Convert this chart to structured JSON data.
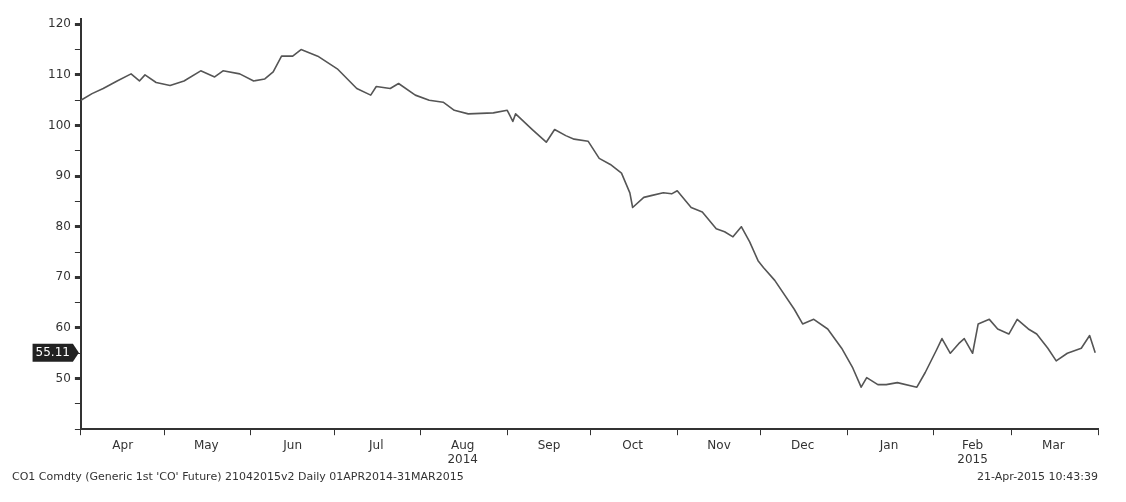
{
  "chart_data": {
    "type": "line",
    "x": [
      "2014-04-01",
      "2014-04-05",
      "2014-04-09",
      "2014-04-14",
      "2014-04-19",
      "2014-04-22",
      "2014-04-24",
      "2014-04-28",
      "2014-05-03",
      "2014-05-08",
      "2014-05-14",
      "2014-05-19",
      "2014-05-22",
      "2014-05-28",
      "2014-06-02",
      "2014-06-06",
      "2014-06-09",
      "2014-06-12",
      "2014-06-16",
      "2014-06-19",
      "2014-06-25",
      "2014-07-02",
      "2014-07-09",
      "2014-07-14",
      "2014-07-16",
      "2014-07-21",
      "2014-07-24",
      "2014-07-30",
      "2014-08-04",
      "2014-08-09",
      "2014-08-13",
      "2014-08-18",
      "2014-08-27",
      "2014-09-01",
      "2014-09-03",
      "2014-09-04",
      "2014-09-10",
      "2014-09-15",
      "2014-09-18",
      "2014-09-22",
      "2014-09-25",
      "2014-09-30",
      "2014-10-04",
      "2014-10-08",
      "2014-10-12",
      "2014-10-15",
      "2014-10-16",
      "2014-10-20",
      "2014-10-23",
      "2014-10-27",
      "2014-10-30",
      "2014-11-01",
      "2014-11-06",
      "2014-11-10",
      "2014-11-15",
      "2014-11-18",
      "2014-11-21",
      "2014-11-24",
      "2014-11-27",
      "2014-11-30",
      "2014-12-02",
      "2014-12-06",
      "2014-12-13",
      "2014-12-16",
      "2014-12-20",
      "2014-12-25",
      "2014-12-30",
      "2015-01-03",
      "2015-01-06",
      "2015-01-08",
      "2015-01-12",
      "2015-01-15",
      "2015-01-19",
      "2015-01-26",
      "2015-01-29",
      "2015-02-02",
      "2015-02-04",
      "2015-02-07",
      "2015-02-10",
      "2015-02-12",
      "2015-02-15",
      "2015-02-17",
      "2015-02-21",
      "2015-02-24",
      "2015-02-28",
      "2015-03-03",
      "2015-03-07",
      "2015-03-10",
      "2015-03-14",
      "2015-03-17",
      "2015-03-21",
      "2015-03-26",
      "2015-03-29",
      "2015-03-31"
    ],
    "series": [
      {
        "color": "#555555",
        "values": [
          105,
          106.3,
          107.3,
          108.8,
          110.2,
          108.8,
          110,
          108.5,
          107.9,
          108.8,
          110.8,
          109.6,
          110.8,
          110.2,
          108.8,
          109.2,
          110.6,
          113.7,
          113.7,
          115,
          113.7,
          111.2,
          107.3,
          106,
          107.7,
          107.3,
          108.3,
          106,
          105,
          104.6,
          103,
          102.3,
          102.5,
          103,
          100.8,
          102.3,
          99.2,
          96.7,
          99.2,
          98,
          97.3,
          96.9,
          93.5,
          92.3,
          90.6,
          86.7,
          83.8,
          85.8,
          86.2,
          86.7,
          86.5,
          87.1,
          83.8,
          82.9,
          79.6,
          79,
          78,
          80,
          77,
          73.3,
          71.9,
          69.4,
          63.7,
          60.8,
          61.7,
          59.8,
          56,
          52.1,
          48.3,
          50.2,
          48.8,
          48.8,
          49.2,
          48.3,
          51.2,
          55.6,
          57.9,
          55,
          56.9,
          57.9,
          55,
          60.8,
          61.7,
          59.8,
          58.8,
          61.7,
          59.8,
          58.8,
          56,
          53.5,
          55,
          56,
          58.5,
          55.11
        ]
      }
    ],
    "xlim": [
      "2014-04-01",
      "2015-04-01"
    ],
    "xticks": [
      {
        "value": "2014-04-01",
        "label": null
      },
      {
        "value": "2014-04-16",
        "label": "Apr"
      },
      {
        "value": "2014-05-01",
        "label": null
      },
      {
        "value": "2014-05-16",
        "label": "May"
      },
      {
        "value": "2014-06-01",
        "label": null
      },
      {
        "value": "2014-06-16",
        "label": "Jun"
      },
      {
        "value": "2014-07-01",
        "label": null
      },
      {
        "value": "2014-07-16",
        "label": "Jul"
      },
      {
        "value": "2014-08-01",
        "label": null
      },
      {
        "value": "2014-08-16",
        "label": "Aug\n2014"
      },
      {
        "value": "2014-09-01",
        "label": null
      },
      {
        "value": "2014-09-16",
        "label": "Sep"
      },
      {
        "value": "2014-10-01",
        "label": null
      },
      {
        "value": "2014-10-16",
        "label": "Oct"
      },
      {
        "value": "2014-11-01",
        "label": null
      },
      {
        "value": "2014-11-16",
        "label": "Nov"
      },
      {
        "value": "2014-12-01",
        "label": null
      },
      {
        "value": "2014-12-16",
        "label": "Dec"
      },
      {
        "value": "2015-01-01",
        "label": null
      },
      {
        "value": "2015-01-16",
        "label": "Jan"
      },
      {
        "value": "2015-02-01",
        "label": null
      },
      {
        "value": "2015-02-15",
        "label": "Feb\n2015"
      },
      {
        "value": "2015-03-01",
        "label": null
      },
      {
        "value": "2015-03-16",
        "label": "Mar"
      },
      {
        "value": "2015-04-01",
        "label": null
      }
    ],
    "ylim": [
      40,
      121
    ],
    "yticks": [
      {
        "value": 40,
        "label": null
      },
      {
        "value": 45,
        "label": null
      },
      50,
      {
        "value": 55,
        "label": null
      },
      60,
      {
        "value": 65,
        "label": null
      },
      70,
      {
        "value": 75,
        "label": null
      },
      80,
      {
        "value": 85,
        "label": null
      },
      90,
      {
        "value": 95,
        "label": null
      },
      100,
      {
        "value": 105,
        "label": null
      },
      110,
      {
        "value": 115,
        "label": null
      },
      120
    ],
    "annotations": [
      "55.11",
      "CO1 Comdty (Generic 1st 'CO' Future) 21042015v2  Daily 01APR2014-31MAR2015",
      "21-Apr-2015 10:43:39"
    ]
  }
}
